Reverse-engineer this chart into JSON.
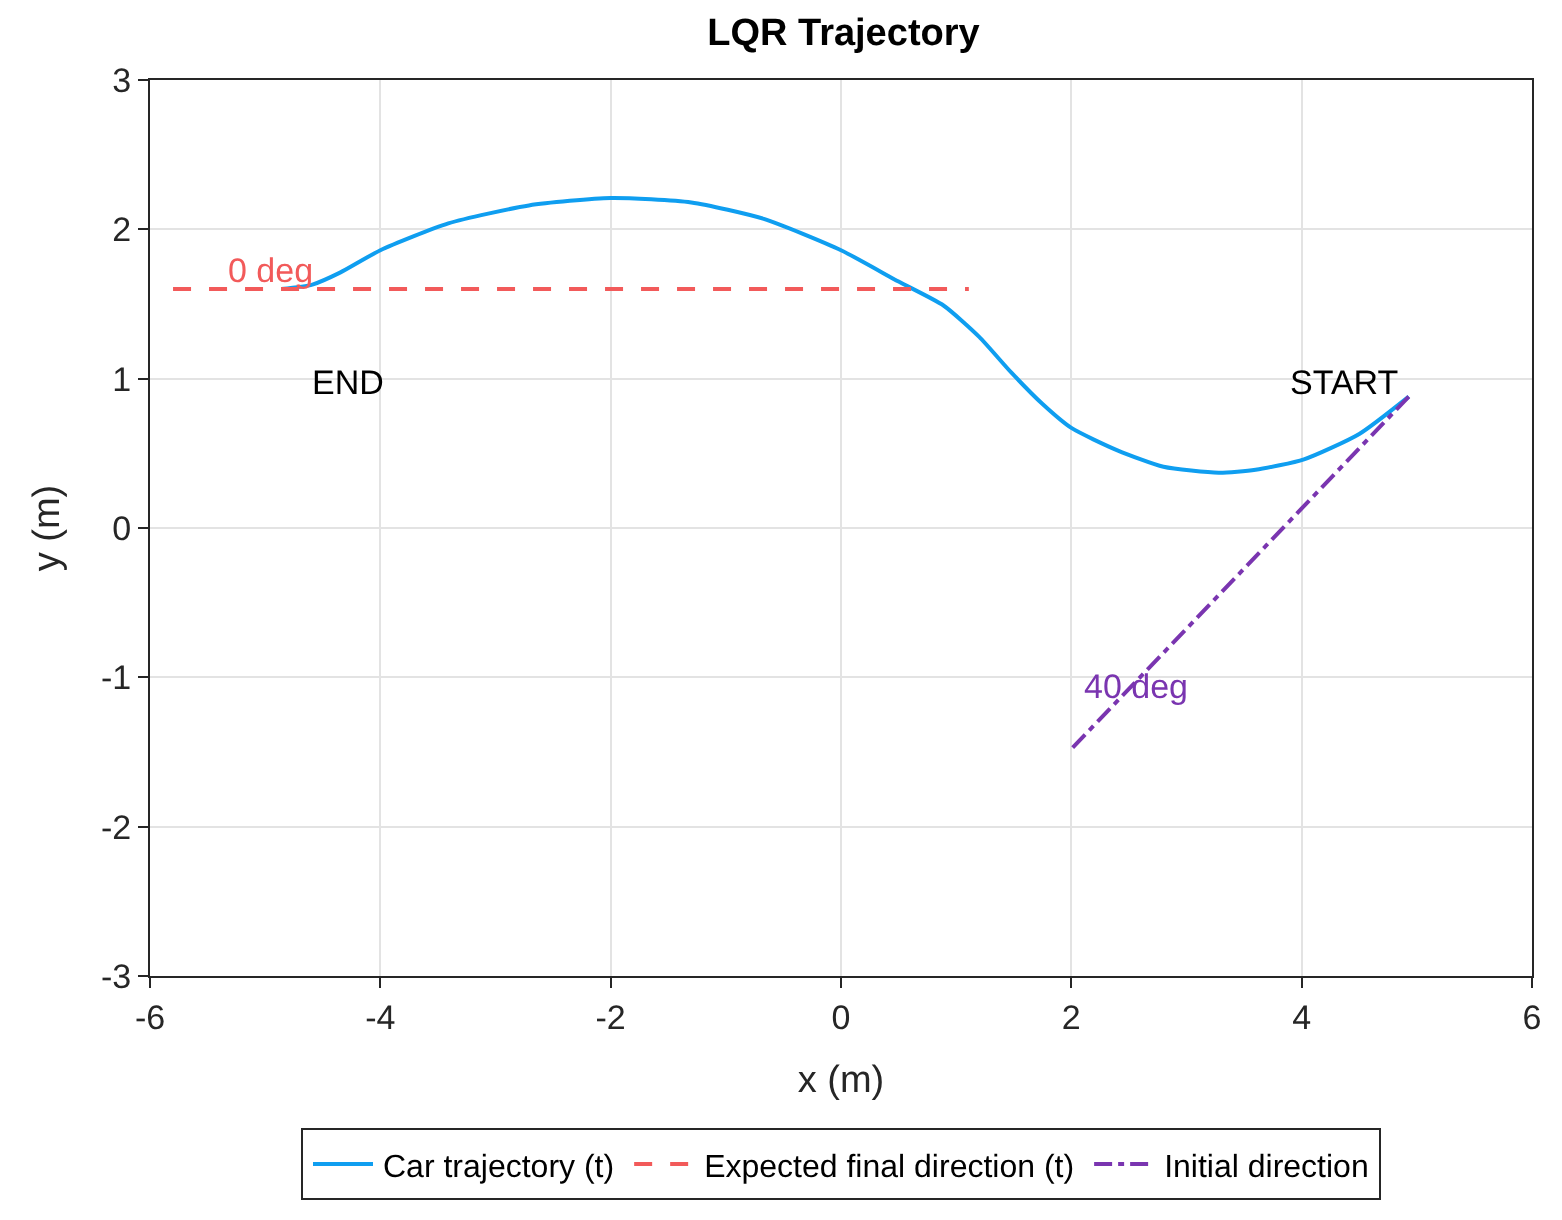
{
  "chart_data": {
    "type": "line",
    "title": "LQR Trajectory",
    "xlabel": "x (m)",
    "ylabel": "y (m)",
    "xlim": [
      -6,
      6
    ],
    "xticks": [
      -6,
      -4,
      -2,
      0,
      2,
      4,
      6
    ],
    "ylim": [
      -3,
      3
    ],
    "yticks": [
      -3,
      -2,
      -1,
      0,
      1,
      2,
      3
    ],
    "grid": true,
    "legend": "bottom",
    "marker": "none",
    "series": [
      {
        "name": "Car trajectory (t)",
        "color": "#0f9ef0",
        "line_style": "solid",
        "x": [
          4.93,
          4.5,
          4.02,
          3.6,
          3.28,
          2.8,
          2.4,
          2.0,
          1.75,
          1.48,
          1.2,
          0.89,
          0.5,
          0,
          -0.67,
          -1.3,
          -2.0,
          -2.71,
          -3.41,
          -4.0,
          -4.35,
          -4.59,
          -4.86
        ],
        "values": [
          0.88,
          0.63,
          0.46,
          0.39,
          0.37,
          0.41,
          0.52,
          0.67,
          0.83,
          1.04,
          1.28,
          1.49,
          1.65,
          1.86,
          2.07,
          2.18,
          2.21,
          2.16,
          2.04,
          1.86,
          1.71,
          1.63,
          1.6
        ]
      },
      {
        "name": "Expected final direction (t)",
        "color": "#f25a5a",
        "line_style": "dashed",
        "x": [
          -5.8,
          1.11
        ],
        "values": [
          1.6,
          1.6
        ]
      },
      {
        "name": "Initial direction",
        "color": "#7a35b0",
        "line_style": "dashdot",
        "x": [
          4.93,
          2.0
        ],
        "values": [
          0.88,
          -1.48
        ]
      }
    ],
    "annotations": [
      "0 deg",
      "END",
      "START",
      "40 deg"
    ]
  }
}
